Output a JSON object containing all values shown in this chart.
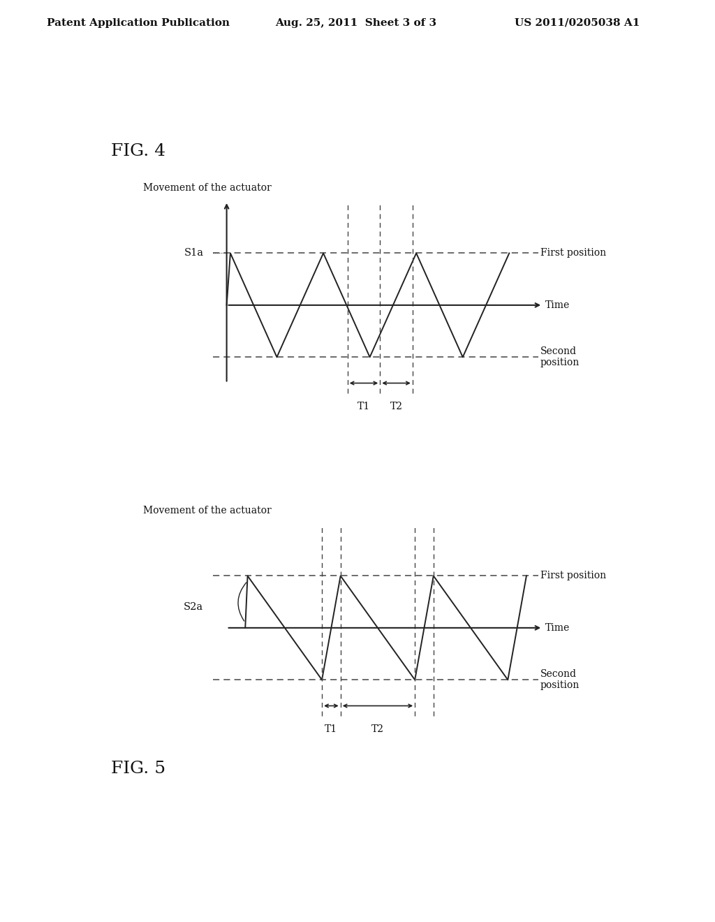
{
  "bg_color": "#ffffff",
  "header_left": "Patent Application Publication",
  "header_center": "Aug. 25, 2011  Sheet 3 of 3",
  "header_right": "US 2011/0205038 A1",
  "header_fontsize": 11,
  "fig4_label": "FIG. 4",
  "fig5_label": "FIG. 5",
  "ylabel": "Movement of the actuator",
  "time_label": "Time",
  "first_position": "First position",
  "second_position": "Second\nposition",
  "s1a_label": "S1a",
  "s2a_label": "S2a",
  "T1_label": "T1",
  "T2_label": "T2",
  "text_color": "#111111",
  "line_color": "#222222",
  "dashed_color": "#444444"
}
